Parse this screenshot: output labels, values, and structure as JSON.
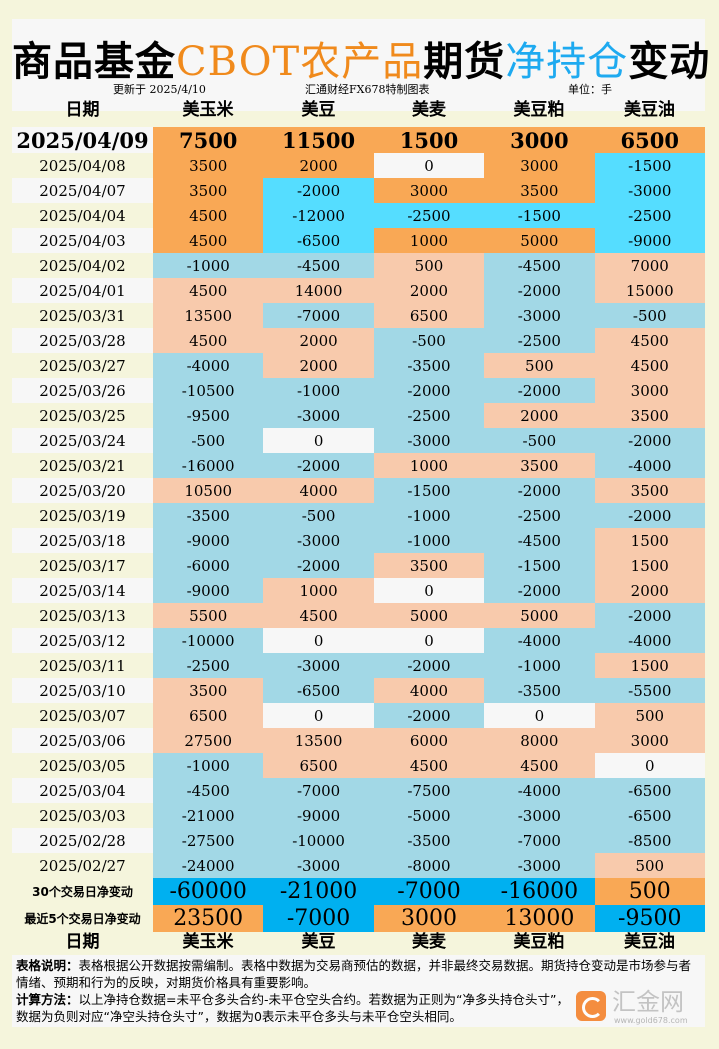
{
  "title": {
    "part1": "商品基金",
    "part2": "CBOT农产品",
    "part3": "期货",
    "part4": "净持仓",
    "part5": "变动"
  },
  "meta": {
    "updated": "更新于 2025/4/10",
    "source": "汇通财经FX678特制图表",
    "unit": "单位：手"
  },
  "columns": [
    "日期",
    "美玉米",
    "美豆",
    "美麦",
    "美豆粕",
    "美豆油"
  ],
  "colors": {
    "orange": "#F9A855",
    "cyan": "#55DDFF",
    "peach": "#F8CAAC",
    "lightblue": "#A2D8E6",
    "white": "#F7F7F7",
    "blue": "#00B0F0",
    "cream": "#F5F5DC"
  },
  "latest": {
    "date": "2025/04/09",
    "values": [
      7500,
      11500,
      1500,
      3000,
      6500
    ]
  },
  "rows": [
    {
      "date": "2025/04/08",
      "values": [
        3500,
        2000,
        0,
        3000,
        -1500
      ]
    },
    {
      "date": "2025/04/07",
      "values": [
        3500,
        -2000,
        3000,
        3500,
        -3000
      ]
    },
    {
      "date": "2025/04/04",
      "values": [
        4500,
        -12000,
        -2500,
        -1500,
        -2500
      ]
    },
    {
      "date": "2025/04/03",
      "values": [
        4500,
        -6500,
        1000,
        5000,
        -9000
      ]
    },
    {
      "date": "2025/04/02",
      "values": [
        -1000,
        -4500,
        500,
        -4500,
        7000
      ]
    },
    {
      "date": "2025/04/01",
      "values": [
        4500,
        14000,
        2000,
        -2000,
        15000
      ]
    },
    {
      "date": "2025/03/31",
      "values": [
        13500,
        -7000,
        6500,
        -3000,
        -500
      ]
    },
    {
      "date": "2025/03/28",
      "values": [
        4500,
        2000,
        -500,
        -2500,
        4500
      ]
    },
    {
      "date": "2025/03/27",
      "values": [
        -4000,
        2000,
        -3500,
        500,
        4500
      ]
    },
    {
      "date": "2025/03/26",
      "values": [
        -10500,
        -1000,
        -2000,
        -2000,
        3000
      ]
    },
    {
      "date": "2025/03/25",
      "values": [
        -9500,
        -3000,
        -2500,
        2000,
        3500
      ]
    },
    {
      "date": "2025/03/24",
      "values": [
        -500,
        0,
        -3000,
        -500,
        -2000
      ]
    },
    {
      "date": "2025/03/21",
      "values": [
        -16000,
        -2000,
        1000,
        3500,
        -4000
      ]
    },
    {
      "date": "2025/03/20",
      "values": [
        10500,
        4000,
        -1500,
        -2000,
        3500
      ]
    },
    {
      "date": "2025/03/19",
      "values": [
        -3500,
        -500,
        -1000,
        -2500,
        -2000
      ]
    },
    {
      "date": "2025/03/18",
      "values": [
        -9000,
        -3000,
        -1000,
        -4500,
        1500
      ]
    },
    {
      "date": "2025/03/17",
      "values": [
        -6000,
        -2000,
        3500,
        -1500,
        1500
      ]
    },
    {
      "date": "2025/03/14",
      "values": [
        -9000,
        1000,
        0,
        -2000,
        2000
      ]
    },
    {
      "date": "2025/03/13",
      "values": [
        5500,
        4500,
        5000,
        5000,
        -2000
      ]
    },
    {
      "date": "2025/03/12",
      "values": [
        -10000,
        0,
        0,
        -4000,
        -4000
      ]
    },
    {
      "date": "2025/03/11",
      "values": [
        -2500,
        -3000,
        -2000,
        -1000,
        1500
      ]
    },
    {
      "date": "2025/03/10",
      "values": [
        3500,
        -6500,
        4000,
        -3500,
        -5500
      ]
    },
    {
      "date": "2025/03/07",
      "values": [
        6500,
        0,
        -2000,
        0,
        500
      ]
    },
    {
      "date": "2025/03/06",
      "values": [
        27500,
        13500,
        6000,
        8000,
        3000
      ]
    },
    {
      "date": "2025/03/05",
      "values": [
        -1000,
        6500,
        4500,
        4500,
        0
      ]
    },
    {
      "date": "2025/03/04",
      "values": [
        -4500,
        -7000,
        -7500,
        -4000,
        -6500
      ]
    },
    {
      "date": "2025/03/03",
      "values": [
        -21000,
        -9000,
        -5000,
        -3000,
        -6500
      ]
    },
    {
      "date": "2025/02/28",
      "values": [
        -27500,
        -10000,
        -3500,
        -7000,
        -8500
      ]
    },
    {
      "date": "2025/02/27",
      "values": [
        -24000,
        -3000,
        -8000,
        -3000,
        500
      ]
    }
  ],
  "summary": [
    {
      "label": "30个交易日净变动",
      "values": [
        -60000,
        -21000,
        -7000,
        -16000,
        500
      ]
    },
    {
      "label": "最近5个交易日净变动",
      "values": [
        23500,
        -7000,
        3000,
        13000,
        -9500
      ]
    }
  ],
  "notes": {
    "desc_label": "表格说明：",
    "desc_text": "表格根据公开数据按需编制。表格中数据为交易商预估的数据，并非最终交易数据。期货持仓变动是市场参与者情绪、预期和行为的反映，对期货价格具有重要影响。",
    "calc_label": "计算方法：",
    "calc_text": "以上净持仓数据=未平仓多头合约-未平仓空头合约。若数据为正则为“净多头持仓头寸”，数据为负则对应“净空头持仓头寸”，数据为0表示未平仓多头与未平仓空头相同。"
  },
  "watermark": {
    "name": "汇金网",
    "url": "www.gold678.com"
  }
}
